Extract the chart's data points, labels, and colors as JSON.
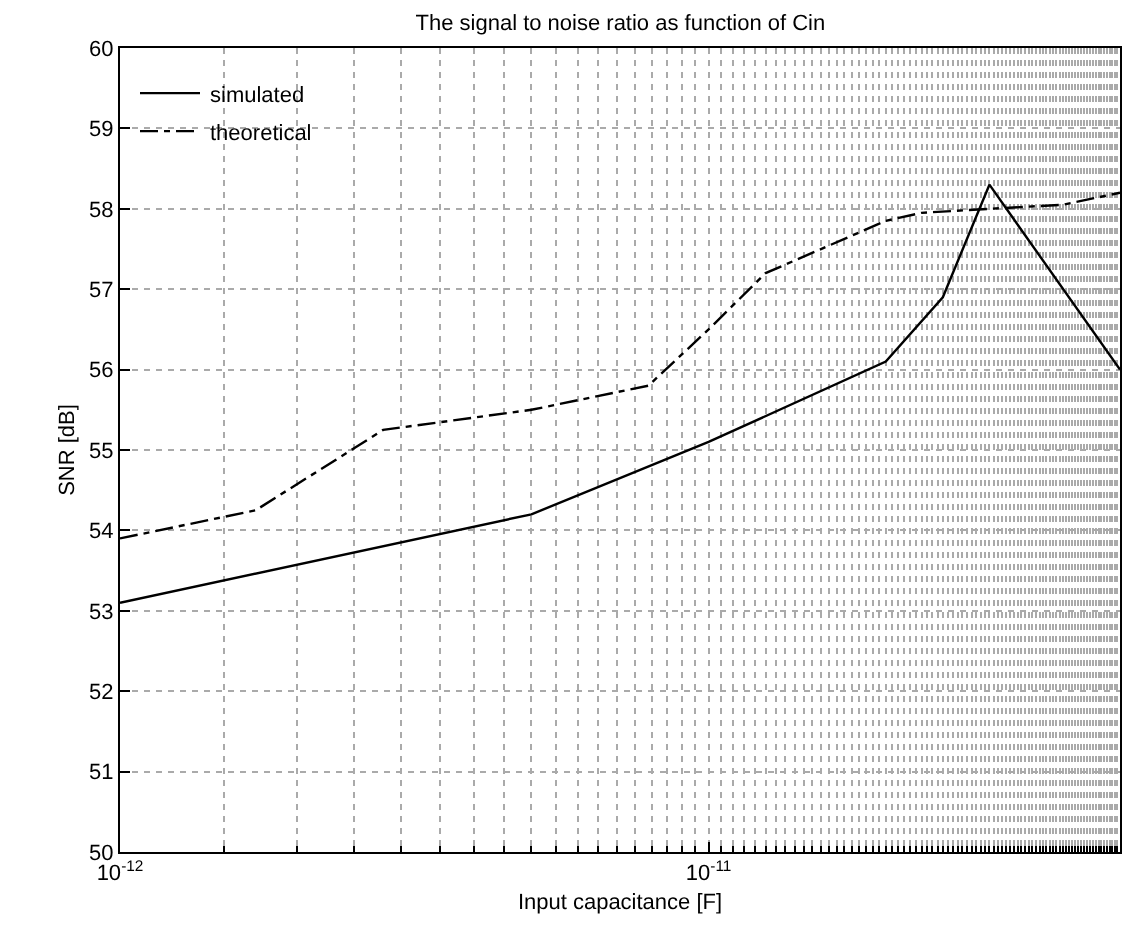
{
  "chart_data": {
    "type": "line",
    "title": "The signal to noise ratio as function of Cin",
    "xlabel": "Input capacitance [F]",
    "ylabel": "SNR [dB]",
    "log": "x",
    "grid": true,
    "legend": "top left",
    "xlim": [
      1e-12,
      5e-11
    ],
    "xticks": [
      {
        "value": 1e-12,
        "label": "10$^{-12}$"
      },
      {
        "value": 1e-11,
        "label": "10$^{-11}$"
      }
    ],
    "ylim": [
      50,
      60
    ],
    "yticks": [
      50,
      51,
      52,
      53,
      54,
      55,
      56,
      57,
      58,
      59,
      60
    ],
    "series": [
      {
        "name": "simulated",
        "color": "#000000",
        "line_style": "solid",
        "x": [
          1e-12,
          5e-12,
          1e-11,
          2e-11,
          2.5e-11,
          3e-11,
          5e-11
        ],
        "values": [
          53.1,
          54.2,
          55.1,
          56.1,
          56.9,
          58.3,
          56.0
        ]
      },
      {
        "name": "theoretical",
        "color": "#000000",
        "line_style": "dashdot",
        "x": [
          1e-12,
          1.7e-12,
          2.8e-12,
          5e-12,
          7.9e-12,
          1e-11,
          1.25e-11,
          2e-11,
          2.3e-11,
          3e-11,
          4e-11,
          5e-11
        ],
        "values": [
          53.9,
          54.25,
          55.25,
          55.5,
          55.8,
          56.5,
          57.2,
          57.85,
          57.95,
          58.0,
          58.05,
          58.2
        ]
      }
    ]
  }
}
